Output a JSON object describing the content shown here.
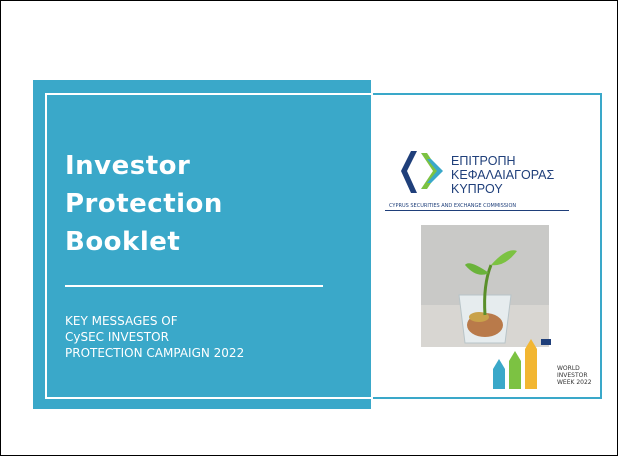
{
  "booklet": {
    "title_lines": [
      "Investor",
      "Protection",
      "Booklet"
    ],
    "subtitle_lines": [
      "KEY MESSAGES OF",
      "CySEC INVESTOR",
      "PROTECTION CAMPAIGN 2022"
    ]
  },
  "cover": {
    "logo_lines": [
      "ΕΠΙΤΡΟΠΗ",
      "ΚΕΦΑΛΑΙΑΓΟΡΑΣ",
      "ΚΥΠΡΟΥ"
    ],
    "logo_subtitle": "CYPRUS SECURITIES AND EXCHANGE COMMISSION",
    "event_lines": [
      "WORLD",
      "INVESTOR",
      "WEEK 2022"
    ]
  }
}
